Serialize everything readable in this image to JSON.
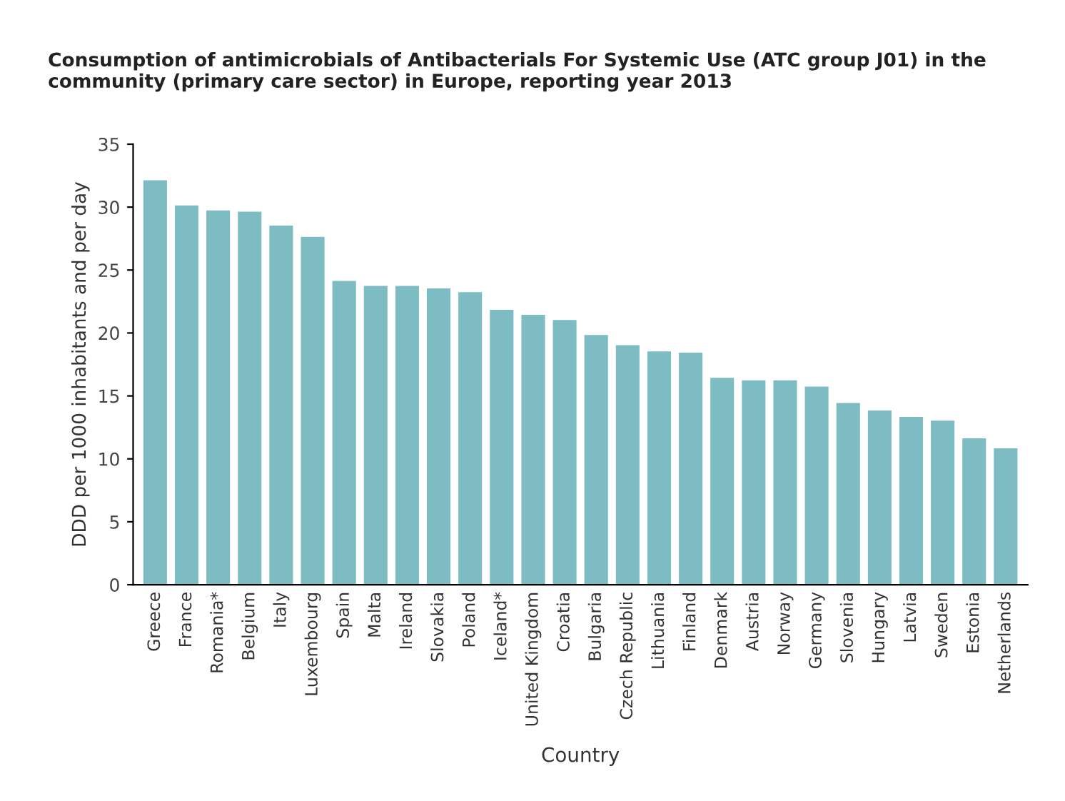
{
  "chart_data": {
    "type": "bar",
    "title": "Consumption of antimicrobials of Antibacterials For Systemic Use (ATC group J01) in the community (primary care sector) in Europe, reporting year 2013",
    "xlabel": "Country",
    "ylabel": "DDD per 1000 inhabitants and per day",
    "categories": [
      "Greece",
      "France",
      "Romania*",
      "Belgium",
      "Italy",
      "Luxembourg",
      "Spain",
      "Malta",
      "Ireland",
      "Slovakia",
      "Poland",
      "Iceland*",
      "United Kingdom",
      "Croatia",
      "Bulgaria",
      "Czech Republic",
      "Lithuania",
      "Finland",
      "Denmark",
      "Austria",
      "Norway",
      "Germany",
      "Slovenia",
      "Hungary",
      "Latvia",
      "Sweden",
      "Estonia",
      "Netherlands"
    ],
    "values": [
      32.2,
      30.2,
      29.8,
      29.7,
      28.6,
      27.7,
      24.2,
      23.8,
      23.8,
      23.6,
      23.3,
      21.9,
      21.5,
      21.1,
      19.9,
      19.1,
      18.6,
      18.5,
      16.5,
      16.3,
      16.3,
      15.8,
      14.5,
      13.9,
      13.4,
      13.1,
      11.7,
      10.9
    ],
    "color": "#7dbcc2",
    "ylim": [
      0,
      35
    ],
    "yticks": [
      0,
      5,
      10,
      15,
      20,
      25,
      30,
      35
    ],
    "grid": false,
    "legend": false
  }
}
